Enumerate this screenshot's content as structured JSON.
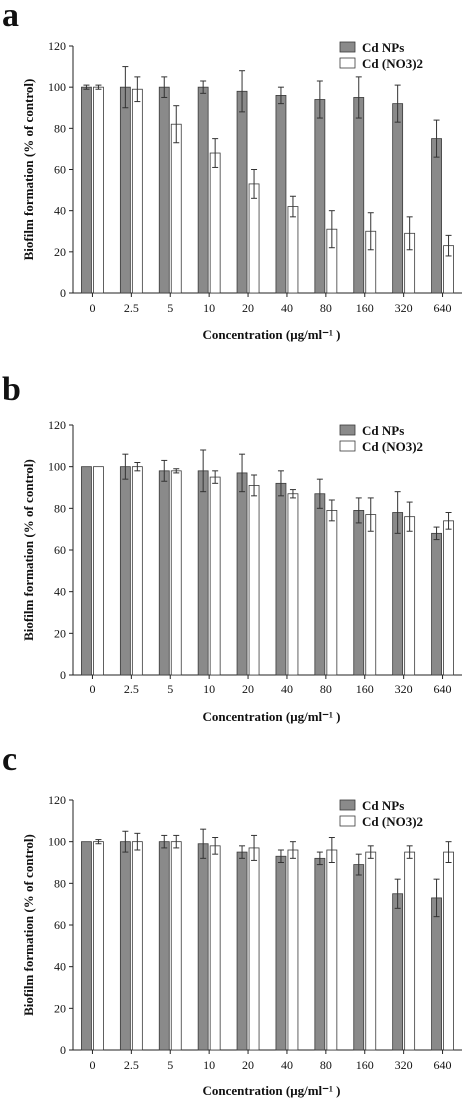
{
  "chart_data": [
    {
      "type": "bar",
      "panel_label": "a",
      "categories": [
        "0",
        "2.5",
        "5",
        "10",
        "20",
        "40",
        "80",
        "160",
        "320",
        "640"
      ],
      "series": [
        {
          "name": "Cd NPs",
          "color": "#8a8a8a",
          "values": [
            100,
            100,
            100,
            100,
            98,
            96,
            94,
            95,
            92,
            75
          ],
          "errors": [
            1,
            10,
            5,
            3,
            10,
            4,
            9,
            10,
            9,
            9
          ]
        },
        {
          "name": "Cd (NO3)2",
          "color": "#ffffff",
          "values": [
            100,
            99,
            82,
            68,
            53,
            42,
            31,
            30,
            29,
            23
          ],
          "errors": [
            1,
            6,
            9,
            7,
            7,
            5,
            9,
            9,
            8,
            5
          ]
        }
      ],
      "ylabel": "Biofilm formation (% of control)",
      "xlabel": "Concentration (μg/ml⁻¹ )",
      "ylim": [
        0,
        120
      ],
      "yticks": [
        0,
        20,
        40,
        60,
        80,
        100,
        120
      ],
      "legend_position": "top-right"
    },
    {
      "type": "bar",
      "panel_label": "b",
      "categories": [
        "0",
        "2.5",
        "5",
        "10",
        "20",
        "40",
        "80",
        "160",
        "320",
        "640"
      ],
      "series": [
        {
          "name": "Cd NPs",
          "color": "#8a8a8a",
          "values": [
            100,
            100,
            98,
            98,
            97,
            92,
            87,
            79,
            78,
            68
          ],
          "errors": [
            0,
            6,
            5,
            10,
            9,
            6,
            7,
            6,
            10,
            3
          ]
        },
        {
          "name": "Cd (NO3)2",
          "color": "#ffffff",
          "values": [
            100,
            100,
            98,
            95,
            91,
            87,
            79,
            77,
            76,
            74
          ],
          "errors": [
            0,
            2,
            1,
            3,
            5,
            2,
            5,
            8,
            7,
            4
          ]
        }
      ],
      "ylabel": "Biofilm formation (% of control)",
      "xlabel": "Concentration (μg/ml⁻¹ )",
      "ylim": [
        0,
        120
      ],
      "yticks": [
        0,
        20,
        40,
        60,
        80,
        100,
        120
      ],
      "legend_position": "top-right"
    },
    {
      "type": "bar",
      "panel_label": "c",
      "categories": [
        "0",
        "2.5",
        "5",
        "10",
        "20",
        "40",
        "80",
        "160",
        "320",
        "640"
      ],
      "series": [
        {
          "name": "Cd NPs",
          "color": "#8a8a8a",
          "values": [
            100,
            100,
            100,
            99,
            95,
            93,
            92,
            89,
            75,
            73
          ],
          "errors": [
            0,
            5,
            3,
            7,
            3,
            3,
            3,
            5,
            7,
            9
          ]
        },
        {
          "name": "Cd (NO3)2",
          "color": "#ffffff",
          "values": [
            100,
            100,
            100,
            98,
            97,
            96,
            96,
            95,
            95,
            95
          ],
          "errors": [
            1,
            4,
            3,
            4,
            6,
            4,
            6,
            3,
            3,
            5
          ]
        }
      ],
      "ylabel": "Biofilm formation (% of control)",
      "xlabel": "Concentration (μg/ml⁻¹ )",
      "ylim": [
        0,
        120
      ],
      "yticks": [
        0,
        20,
        40,
        60,
        80,
        100,
        120
      ],
      "legend_position": "top-right"
    }
  ]
}
